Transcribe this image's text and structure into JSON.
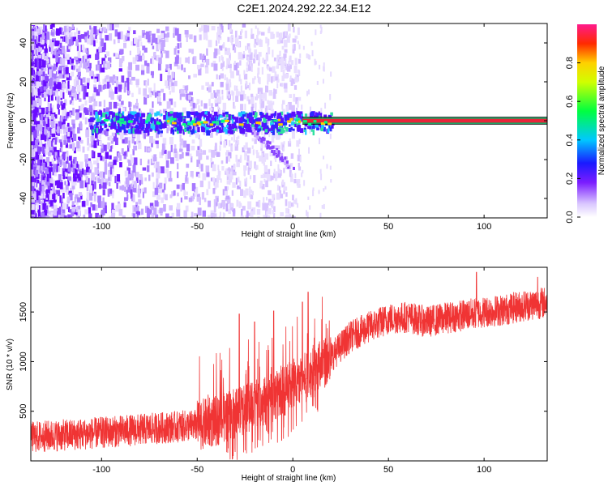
{
  "title": "C2E1.2024.292.22.34.E12",
  "colors": {
    "snr_line": "#f03434",
    "spectrum_low": "#f2eaff",
    "spectrum_mid": "#7a1cff",
    "main_band": "#e8253a"
  },
  "chart_data": [
    {
      "type": "heatmap",
      "name": "spectrogram",
      "xlabel": "Height of straight line (km)",
      "ylabel": "Frequency (Hz)",
      "xlim": [
        -137,
        133
      ],
      "ylim": [
        -50,
        50
      ],
      "xticks": [
        -100,
        -50,
        0,
        50,
        100
      ],
      "yticks": [
        -40,
        -20,
        0,
        20,
        40
      ],
      "band_center_hz": 0,
      "band_half_width_hz": 1,
      "colorbar": {
        "label": "Normalized spectral amplitude",
        "range": [
          0,
          1
        ],
        "ticks": [
          0.0,
          0.2,
          0.4,
          0.6,
          0.8
        ]
      }
    },
    {
      "type": "line",
      "name": "snr",
      "xlabel": "Height of straight line (km)",
      "ylabel": "SNR (10 * v/v)",
      "xlim": [
        -137,
        133
      ],
      "ylim": [
        0,
        1950
      ],
      "xticks": [
        -100,
        -50,
        0,
        50,
        100
      ],
      "yticks": [
        500,
        1000,
        1500
      ],
      "trend": {
        "x": [
          -137,
          -110,
          -90,
          -70,
          -50,
          -40,
          -30,
          -20,
          -10,
          0,
          10,
          20,
          30,
          40,
          50,
          60,
          70,
          80,
          90,
          100,
          110,
          120,
          133
        ],
        "y": [
          240,
          270,
          300,
          330,
          360,
          400,
          480,
          560,
          640,
          760,
          880,
          1050,
          1250,
          1350,
          1430,
          1450,
          1400,
          1440,
          1470,
          1500,
          1520,
          1560,
          1600
        ]
      },
      "noise_amplitude": 160,
      "peaks": [
        {
          "x": -28,
          "y": 1480
        },
        {
          "x": -20,
          "y": 1400
        },
        {
          "x": -10,
          "y": 1510
        },
        {
          "x": 5,
          "y": 1600
        },
        {
          "x": 8,
          "y": 1700
        },
        {
          "x": 96,
          "y": 1900
        },
        {
          "x": 128,
          "y": 1850
        }
      ]
    }
  ]
}
